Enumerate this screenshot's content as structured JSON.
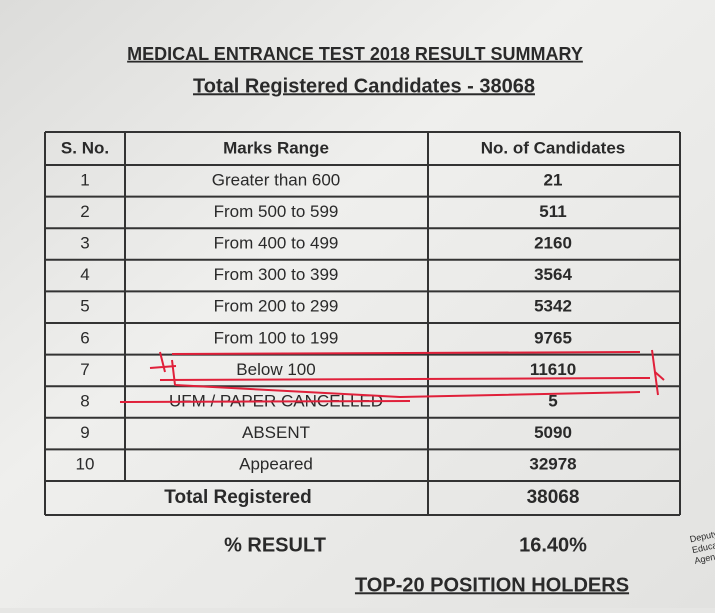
{
  "header": {
    "title": "MEDICAL ENTRANCE TEST 2018 RESULT SUMMARY",
    "subtitle": "Total Registered Candidates - 38068"
  },
  "table": {
    "columns": [
      "S. No.",
      "Marks Range",
      "No. of Candidates"
    ],
    "rows": [
      [
        "1",
        "Greater than 600",
        "21"
      ],
      [
        "2",
        "From 500 to 599",
        "511"
      ],
      [
        "3",
        "From 400 to 499",
        "2160"
      ],
      [
        "4",
        "From 300 to 399",
        "3564"
      ],
      [
        "5",
        "From 200 to 299",
        "5342"
      ],
      [
        "6",
        "From 100 to 199",
        "9765"
      ],
      [
        "7",
        "Below 100",
        "11610"
      ],
      [
        "8",
        "UFM / PAPER CANCELLED",
        "5"
      ],
      [
        "9",
        "ABSENT",
        "5090"
      ],
      [
        "10",
        "Appeared",
        "32978"
      ]
    ],
    "total": {
      "label": "Total Registered",
      "value": "38068"
    }
  },
  "result": {
    "label": "% RESULT",
    "value": "16.40%"
  },
  "footer": {
    "heading": "TOP-20 POSITION HOLDERS"
  },
  "stamp": {
    "lines": [
      "Deputy",
      "Educationa",
      "Agency"
    ]
  }
}
